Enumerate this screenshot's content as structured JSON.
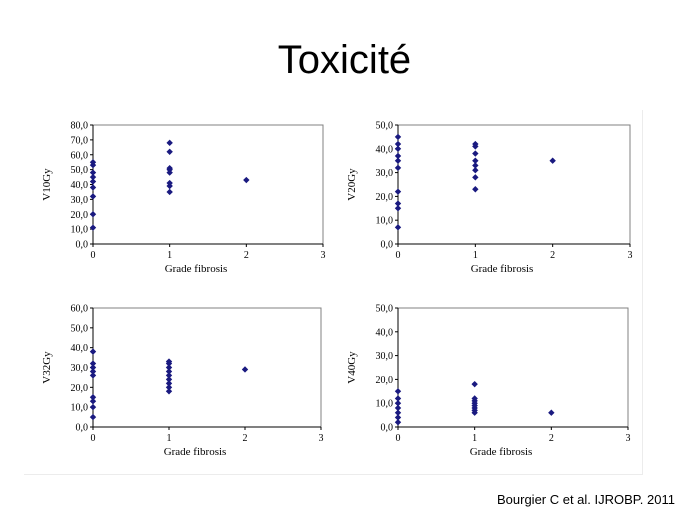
{
  "slide": {
    "title": "Toxicité",
    "citation": "Bourgier C et al. IJROBP. 2011"
  },
  "colors": {
    "marker": "#1a1a80",
    "frame": "#808080",
    "tick": "#000000"
  },
  "chart_data": [
    {
      "type": "scatter",
      "xlabel": "Grade fibrosis",
      "ylabel": "V10Gy",
      "xlim": [
        0,
        3
      ],
      "ylim": [
        0,
        80
      ],
      "xticks": [
        "0",
        "1",
        "2",
        "3"
      ],
      "yticks": [
        "0,0",
        "10,0",
        "20,0",
        "30,0",
        "40,0",
        "50,0",
        "60,0",
        "70,0",
        "80,0"
      ],
      "grid": false,
      "points": [
        {
          "x": 0,
          "y": 11
        },
        {
          "x": 0,
          "y": 20
        },
        {
          "x": 0,
          "y": 32
        },
        {
          "x": 0,
          "y": 38
        },
        {
          "x": 0,
          "y": 42
        },
        {
          "x": 0,
          "y": 45
        },
        {
          "x": 0,
          "y": 48
        },
        {
          "x": 0,
          "y": 53
        },
        {
          "x": 0,
          "y": 55
        },
        {
          "x": 1,
          "y": 35
        },
        {
          "x": 1,
          "y": 39
        },
        {
          "x": 1,
          "y": 41
        },
        {
          "x": 1,
          "y": 48
        },
        {
          "x": 1,
          "y": 50
        },
        {
          "x": 1,
          "y": 51
        },
        {
          "x": 1,
          "y": 62
        },
        {
          "x": 1,
          "y": 68
        },
        {
          "x": 2,
          "y": 43
        }
      ]
    },
    {
      "type": "scatter",
      "xlabel": "Grade fibrosis",
      "ylabel": "V20Gy",
      "xlim": [
        0,
        3
      ],
      "ylim": [
        0,
        50
      ],
      "xticks": [
        "0",
        "1",
        "2",
        "3"
      ],
      "yticks": [
        "0,0",
        "10,0",
        "20,0",
        "30,0",
        "40,0",
        "50,0"
      ],
      "grid": false,
      "points": [
        {
          "x": 0,
          "y": 7
        },
        {
          "x": 0,
          "y": 15
        },
        {
          "x": 0,
          "y": 17
        },
        {
          "x": 0,
          "y": 22
        },
        {
          "x": 0,
          "y": 32
        },
        {
          "x": 0,
          "y": 35
        },
        {
          "x": 0,
          "y": 37
        },
        {
          "x": 0,
          "y": 40
        },
        {
          "x": 0,
          "y": 42
        },
        {
          "x": 0,
          "y": 45
        },
        {
          "x": 1,
          "y": 23
        },
        {
          "x": 1,
          "y": 28
        },
        {
          "x": 1,
          "y": 31
        },
        {
          "x": 1,
          "y": 33
        },
        {
          "x": 1,
          "y": 35
        },
        {
          "x": 1,
          "y": 38
        },
        {
          "x": 1,
          "y": 41
        },
        {
          "x": 1,
          "y": 42
        },
        {
          "x": 2,
          "y": 35
        }
      ]
    },
    {
      "type": "scatter",
      "xlabel": "Grade fibrosis",
      "ylabel": "V32Gy",
      "xlim": [
        0,
        3
      ],
      "ylim": [
        0,
        60
      ],
      "xticks": [
        "0",
        "1",
        "2",
        "3"
      ],
      "yticks": [
        "0,0",
        "10,0",
        "20,0",
        "30,0",
        "40,0",
        "50,0",
        "60,0"
      ],
      "grid": false,
      "points": [
        {
          "x": 0,
          "y": 5
        },
        {
          "x": 0,
          "y": 10
        },
        {
          "x": 0,
          "y": 13
        },
        {
          "x": 0,
          "y": 15
        },
        {
          "x": 0,
          "y": 26
        },
        {
          "x": 0,
          "y": 28
        },
        {
          "x": 0,
          "y": 30
        },
        {
          "x": 0,
          "y": 32
        },
        {
          "x": 0,
          "y": 38
        },
        {
          "x": 1,
          "y": 18
        },
        {
          "x": 1,
          "y": 20
        },
        {
          "x": 1,
          "y": 22
        },
        {
          "x": 1,
          "y": 24
        },
        {
          "x": 1,
          "y": 26
        },
        {
          "x": 1,
          "y": 28
        },
        {
          "x": 1,
          "y": 30
        },
        {
          "x": 1,
          "y": 32
        },
        {
          "x": 1,
          "y": 33
        },
        {
          "x": 2,
          "y": 29
        }
      ]
    },
    {
      "type": "scatter",
      "xlabel": "Grade fibrosis",
      "ylabel": "V40Gy",
      "xlim": [
        0,
        3
      ],
      "ylim": [
        0,
        50
      ],
      "xticks": [
        "0",
        "1",
        "2",
        "3"
      ],
      "yticks": [
        "0,0",
        "10,0",
        "20,0",
        "30,0",
        "40,0",
        "50,0"
      ],
      "grid": false,
      "points": [
        {
          "x": 0,
          "y": 2
        },
        {
          "x": 0,
          "y": 4
        },
        {
          "x": 0,
          "y": 6
        },
        {
          "x": 0,
          "y": 8
        },
        {
          "x": 0,
          "y": 10
        },
        {
          "x": 0,
          "y": 12
        },
        {
          "x": 0,
          "y": 15
        },
        {
          "x": 1,
          "y": 6
        },
        {
          "x": 1,
          "y": 7
        },
        {
          "x": 1,
          "y": 8
        },
        {
          "x": 1,
          "y": 9
        },
        {
          "x": 1,
          "y": 10
        },
        {
          "x": 1,
          "y": 11
        },
        {
          "x": 1,
          "y": 12
        },
        {
          "x": 1,
          "y": 18
        },
        {
          "x": 2,
          "y": 6
        }
      ]
    }
  ]
}
